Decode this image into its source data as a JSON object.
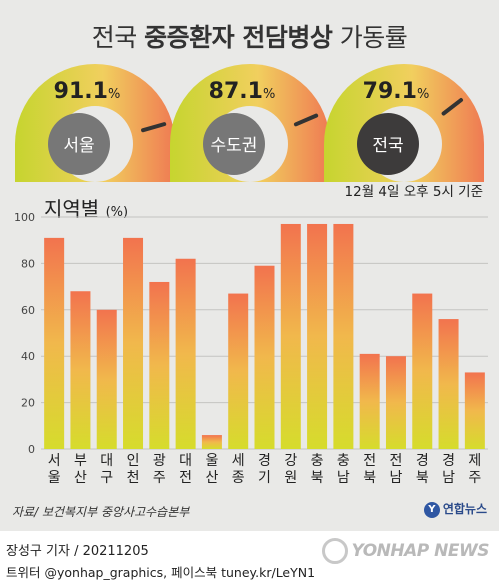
{
  "title": {
    "part1": "전국 ",
    "part2": "중증환자 전담병상",
    "part3": " 가동률"
  },
  "gauges": [
    {
      "label": "서울",
      "value": 91.1,
      "display": "91.1",
      "unit": "%"
    },
    {
      "label": "수도권",
      "value": 87.1,
      "display": "87.1",
      "unit": "%"
    },
    {
      "label": "전국",
      "value": 79.1,
      "display": "79.1",
      "unit": "%"
    }
  ],
  "subtitle": {
    "text": "지역별",
    "unit": "(%)"
  },
  "basis": "12월 4일 오후 5시 기준",
  "source": "자료/ 보건복지부 중앙사고수습본부",
  "brand": "연합뉴스",
  "credit": {
    "line1": "장성구 기자 / 20211205",
    "line2": "트위터 @yonhap_graphics, 페이스북 tuney.kr/LeYN1"
  },
  "watermark": "YONHAP NEWS",
  "colors": {
    "bar_top": "#f2734e",
    "bar_bottom": "#d6dc2c",
    "gauge_low": "#c6d52f",
    "gauge_high": "#ef7a53"
  },
  "chart_data": {
    "type": "bar",
    "categories": [
      "서울",
      "부산",
      "대구",
      "인천",
      "광주",
      "대전",
      "울산",
      "세종",
      "경기",
      "강원",
      "충북",
      "충남",
      "전북",
      "전남",
      "경북",
      "경남",
      "제주"
    ],
    "values": [
      91,
      68,
      60,
      91,
      72,
      82,
      6,
      67,
      79,
      97,
      97,
      97,
      41,
      40,
      67,
      56,
      33
    ],
    "yticks": [
      0,
      20,
      40,
      60,
      80,
      100
    ],
    "ylim": [
      0,
      100
    ],
    "grid": true
  }
}
